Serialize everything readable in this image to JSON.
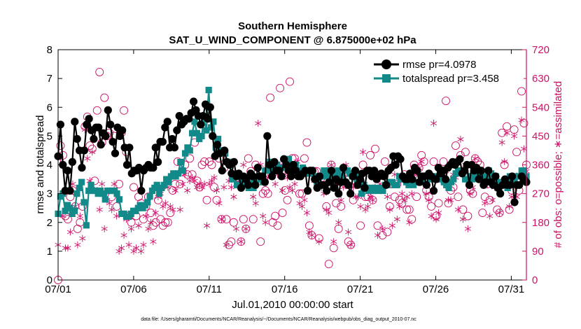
{
  "chart_data": {
    "type": "line",
    "title": "Southern Hemisphere",
    "subtitle": "SAT_U_WIND_COMPONENT @ 6.875000e+02 hPa",
    "xlabel": "Jul.01,2010 00:00:00 start",
    "ylabel": "rmse and totalspread",
    "y2label": "# of obs: o=possible; ∗=assimilated",
    "footnote": "data file: /Users/gharamti/Documents/NCAR/Reanalysis/~/Documents/NCAR/Reanalysis/webpub/obs_diag_output_2010-07.nc",
    "xlim": [
      0,
      31
    ],
    "ylim": [
      0,
      8
    ],
    "y2lim": [
      0,
      720
    ],
    "x_ticks": [
      0,
      5,
      10,
      15,
      20,
      25,
      30
    ],
    "x_tick_labels": [
      "07/01",
      "07/06",
      "07/11",
      "07/16",
      "07/21",
      "07/26",
      "07/31"
    ],
    "y_ticks": [
      0,
      1,
      2,
      3,
      4,
      5,
      6,
      7,
      8
    ],
    "y_tick_labels": [
      "0",
      "1",
      "2",
      "3",
      "4",
      "5",
      "6",
      "7",
      "8"
    ],
    "y2_ticks": [
      0,
      90,
      180,
      270,
      360,
      450,
      540,
      630,
      720
    ],
    "y2_tick_labels": [
      "0",
      "90",
      "180",
      "270",
      "360",
      "450",
      "540",
      "630",
      "720"
    ],
    "grid": false,
    "legend_position": "top-right",
    "colors": {
      "rmse": "#000000",
      "totalspread": "#138a8a",
      "obs": "#cc1166",
      "axis": "#000000",
      "right_axis": "#cc1166"
    },
    "series": [
      {
        "name": "rmse",
        "legend_label": "rmse pr=4.0978",
        "values": [
          4.3,
          5.4,
          4.0,
          3.1,
          3.8,
          3.1,
          4.1,
          5.5,
          4.9,
          4.5,
          3.9,
          4.5,
          5.4,
          5.6,
          5.2,
          4.9,
          5.3,
          5.3,
          4.7,
          5.1,
          5.0,
          5.9,
          5.4,
          4.8,
          4.4,
          5.3,
          5.0,
          5.2,
          4.6,
          4.0,
          4.6,
          3.7,
          3.8,
          3.8,
          3.9,
          3.1,
          3.8,
          3.9,
          4.0,
          3.9,
          3.9,
          4.6,
          4.1,
          4.8,
          4.8,
          5.3,
          5.5,
          4.6,
          4.9,
          4.6,
          5.2,
          5.7,
          5.4,
          5.5,
          5.6,
          5.6,
          5.8,
          6.2,
          5.9,
          5.7,
          5.4,
          5.7,
          6.1,
          5.6,
          6.0,
          5.0,
          4.3,
          4.7,
          4.4,
          3.8,
          4.5,
          4.1,
          4.0,
          3.7,
          4.1,
          3.6,
          3.7,
          3.2,
          3.6,
          3.5,
          3.3,
          3.7,
          3.6,
          3.3,
          3.9,
          3.6,
          3.6,
          3.4,
          5.0,
          4.0,
          3.6,
          4.1,
          3.8,
          3.8,
          3.6,
          4.2,
          4.0,
          3.8,
          3.6,
          4.0,
          3.8,
          3.6,
          3.6,
          3.7,
          3.8,
          3.1,
          3.8,
          3.8,
          3.5,
          3.2,
          3.6,
          3.3,
          3.3,
          3.1,
          3.4,
          3.8,
          3.2,
          3.5,
          3.0,
          3.4,
          3.9,
          3.4,
          3.3,
          3.0,
          3.6,
          3.8,
          3.3,
          3.5,
          3.7,
          3.2,
          3.8,
          3.8,
          3.6,
          3.8,
          3.5,
          3.6,
          3.7,
          3.6,
          3.3,
          3.8,
          3.9,
          4.3,
          4.0,
          4.3,
          4.2,
          3.6,
          3.5,
          3.5,
          3.7,
          3.5,
          3.9,
          3.8,
          3.4,
          3.6,
          3.6,
          3.3,
          3.7,
          3.6,
          3.1,
          3.5,
          3.9,
          3.7,
          3.8,
          3.5,
          3.9,
          4.0,
          4.1,
          4.0,
          4.1,
          4.2,
          3.7,
          3.8,
          4.0,
          3.3,
          4.0,
          3.8,
          3.9,
          3.5,
          3.8,
          3.3,
          3.4,
          3.8,
          3.4,
          3.3,
          3.6,
          3.2,
          3.0,
          3.3,
          3.5,
          3.3,
          3.3,
          3.6,
          2.7,
          3.3,
          3.3,
          3.6,
          3.5,
          3.4
        ]
      },
      {
        "name": "totalspread",
        "legend_label": "totalspread pr=3.458",
        "values": [
          2.3,
          2.9,
          3.0,
          2.4,
          2.6,
          2.5,
          2.3,
          2.4,
          3.0,
          3.2,
          3.4,
          2.7,
          1.9,
          3.1,
          3.3,
          3.1,
          3.1,
          3.0,
          3.1,
          3.0,
          2.8,
          3.1,
          3.1,
          3.1,
          3.1,
          3.0,
          2.8,
          2.3,
          2.3,
          2.2,
          2.2,
          2.3,
          2.4,
          2.4,
          2.5,
          2.6,
          2.5,
          2.6,
          2.7,
          2.9,
          3.1,
          3.2,
          3.3,
          3.0,
          3.2,
          3.3,
          3.5,
          3.4,
          3.6,
          3.7,
          3.6,
          3.7,
          4.1,
          3.8,
          4.4,
          4.6,
          4.5,
          5.1,
          5.5,
          5.1,
          4.9,
          5.0,
          5.6,
          5.2,
          6.6,
          5.3,
          5.5,
          4.6,
          4.9,
          4.5,
          4.4,
          4.4,
          4.1,
          4.1,
          3.5,
          3.6,
          3.3,
          3.3,
          3.4,
          3.3,
          3.5,
          3.2,
          3.4,
          3.2,
          3.4,
          3.5,
          3.6,
          3.4,
          3.8,
          3.8,
          4.1,
          3.8,
          3.9,
          4.0,
          3.8,
          3.9,
          3.9,
          4.1,
          4.2,
          3.9,
          3.9,
          4.0,
          3.7,
          3.8,
          3.9,
          3.8,
          3.7,
          3.8,
          3.7,
          3.6,
          3.4,
          3.6,
          3.6,
          3.8,
          3.6,
          3.8,
          3.7,
          3.5,
          3.6,
          3.8,
          3.6,
          3.5,
          3.8,
          3.8,
          3.7,
          3.6,
          3.6,
          3.5,
          3.7,
          3.0,
          3.3,
          3.2,
          3.1,
          3.2,
          3.1,
          3.2,
          3.1,
          3.2,
          3.1,
          3.3,
          3.3,
          3.4,
          3.4,
          3.3,
          3.3,
          3.6,
          3.5,
          3.5,
          3.4,
          3.3,
          3.4,
          3.3,
          3.4,
          3.4,
          3.4,
          3.5,
          3.6,
          3.6,
          3.5,
          3.6,
          3.5,
          3.6,
          3.5,
          3.5,
          3.4,
          3.3,
          3.2,
          3.4,
          3.5,
          3.7,
          3.8,
          3.8,
          3.8,
          3.5,
          3.5,
          3.6,
          3.5,
          3.6,
          3.8,
          3.7,
          3.6,
          3.4,
          3.6,
          3.8,
          3.7,
          3.6,
          3.6,
          3.4,
          3.3,
          3.4,
          3.3,
          3.2,
          3.6,
          3.5,
          3.4,
          3.6,
          3.6,
          3.8,
          3.8,
          3.6
        ]
      },
      {
        "name": "obs possible",
        "axis": "right",
        "marker": "circle",
        "values": [
          0,
          420,
          390,
          200,
          190,
          260,
          280,
          230,
          160,
          180,
          230,
          480,
          510,
          420,
          410,
          310,
          530,
          650,
          430,
          570,
          450,
          460,
          260,
          450,
          230,
          300,
          460,
          530,
          400,
          200,
          180,
          290,
          200,
          260,
          240,
          190,
          230,
          260,
          210,
          170,
          180,
          250,
          190,
          170,
          180,
          180,
          210,
          280,
          300,
          370,
          300,
          340,
          360,
          330,
          380,
          330,
          430,
          310,
          290,
          360,
          370,
          250,
          370,
          360,
          290,
          250,
          380,
          190,
          350,
          190,
          110,
          120,
          180,
          320,
          320,
          120,
          190,
          160,
          380,
          340,
          190,
          360,
          320,
          120,
          270,
          280,
          270,
          570,
          180,
          200,
          170,
          600,
          210,
          280,
          250,
          620,
          380,
          380,
          340,
          270,
          270,
          380,
          430,
          170,
          140,
          340,
          340,
          130,
          320,
          310,
          230,
          50,
          360,
          100,
          240,
          160,
          230,
          330,
          340,
          120,
          110,
          250,
          310,
          300,
          170,
          360,
          260,
          260,
          390,
          250,
          410,
          170,
          330,
          140,
          370,
          150,
          230,
          300,
          260,
          300,
          250,
          240,
          330,
          220,
          220,
          190,
          360,
          260,
          350,
          390,
          370,
          280,
          260,
          230,
          370,
          200,
          240,
          320,
          370,
          560,
          240,
          280,
          290,
          420,
          260,
          390,
          220,
          400,
          200,
          280,
          270,
          380,
          370,
          360,
          210,
          260,
          300,
          250,
          320,
          300,
          220,
          210,
          460,
          360,
          480,
          220,
          280,
          470,
          400,
          280,
          590,
          490,
          360
        ]
      },
      {
        "name": "obs assimilated",
        "axis": "right",
        "marker": "star",
        "values": [
          110,
          380,
          200,
          100,
          100,
          150,
          300,
          230,
          110,
          200,
          130,
          470,
          380,
          310,
          400,
          280,
          280,
          220,
          300,
          160,
          250,
          240,
          220,
          300,
          200,
          90,
          100,
          140,
          190,
          110,
          160,
          90,
          100,
          170,
          90,
          110,
          200,
          160,
          180,
          120,
          210,
          260,
          270,
          230,
          240,
          290,
          230,
          220,
          280,
          330,
          220,
          300,
          330,
          280,
          310,
          320,
          310,
          290,
          300,
          290,
          300,
          170,
          300,
          310,
          320,
          280,
          240,
          190,
          290,
          110,
          310,
          290,
          260,
          160,
          330,
          120,
          360,
          160,
          290,
          320,
          260,
          240,
          490,
          360,
          200,
          180,
          320,
          360,
          340,
          300,
          330,
          360,
          280,
          330,
          320,
          290,
          280,
          300,
          370,
          240,
          230,
          250,
          210,
          150,
          140,
          310,
          300,
          120,
          290,
          270,
          220,
          210,
          360,
          120,
          300,
          180,
          250,
          290,
          360,
          150,
          110,
          290,
          260,
          260,
          230,
          400,
          220,
          230,
          260,
          250,
          290,
          140,
          300,
          160,
          300,
          260,
          220,
          170,
          330,
          190,
          230,
          270,
          250,
          260,
          180,
          270,
          330,
          330,
          350,
          370,
          300,
          270,
          250,
          200,
          490,
          190,
          210,
          310,
          330,
          340,
          250,
          250,
          330,
          320,
          220,
          440,
          190,
          360,
          160,
          270,
          290,
          380,
          320,
          320,
          310,
          240,
          300,
          200,
          250,
          290,
          300,
          210,
          430,
          370,
          460,
          230,
          260,
          450,
          260,
          330,
          500,
          410,
          340
        ]
      }
    ]
  }
}
